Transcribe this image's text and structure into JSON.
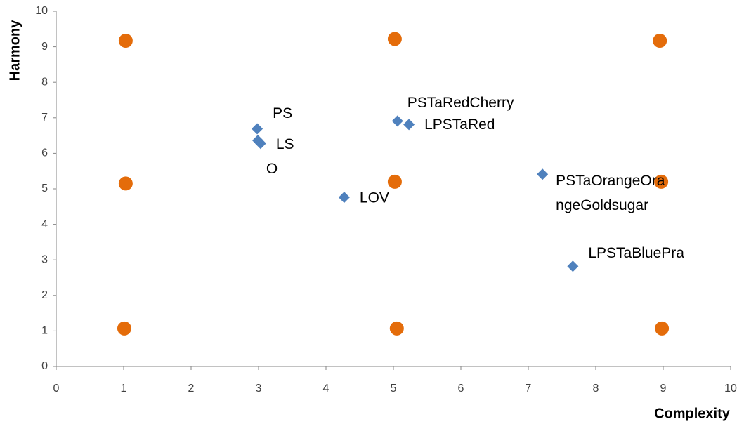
{
  "chart_data": {
    "type": "scatter",
    "xlabel": "Complexity",
    "ylabel": "Harmony",
    "xlim": [
      0,
      10
    ],
    "xticks": [
      0,
      1,
      2,
      3,
      4,
      5,
      6,
      7,
      8,
      9,
      10
    ],
    "ylim": [
      0,
      10
    ],
    "yticks": [
      0,
      1,
      2,
      3,
      4,
      5,
      6,
      7,
      8,
      9,
      10
    ],
    "grid": false,
    "series": [
      {
        "color": "#e46c0a",
        "marker": "circle",
        "x": [
          1.03,
          5.02,
          8.95,
          1.03,
          5.02,
          8.97,
          1.01,
          5.05,
          8.98
        ],
        "values": [
          9.17,
          9.22,
          9.17,
          5.15,
          5.2,
          5.2,
          1.07,
          1.07,
          1.07
        ]
      },
      {
        "color": "#4f81bd",
        "marker": "diamond",
        "x": [
          2.98,
          2.99,
          3.03,
          4.27,
          5.06,
          5.23,
          7.21,
          7.66
        ],
        "values": [
          6.69,
          6.36,
          6.28,
          4.76,
          6.91,
          6.81,
          5.41,
          2.82
        ],
        "labels": [
          [
            "PS"
          ],
          null,
          [
            "LS",
            "O"
          ],
          [
            "LOV"
          ],
          [
            "PSTaRedCherry"
          ],
          [
            "LPSTaRed"
          ],
          [
            "PSTaOrangeOra",
            "ngeGoldsugar"
          ],
          [
            "LPSTaBluePra"
          ]
        ]
      }
    ]
  }
}
